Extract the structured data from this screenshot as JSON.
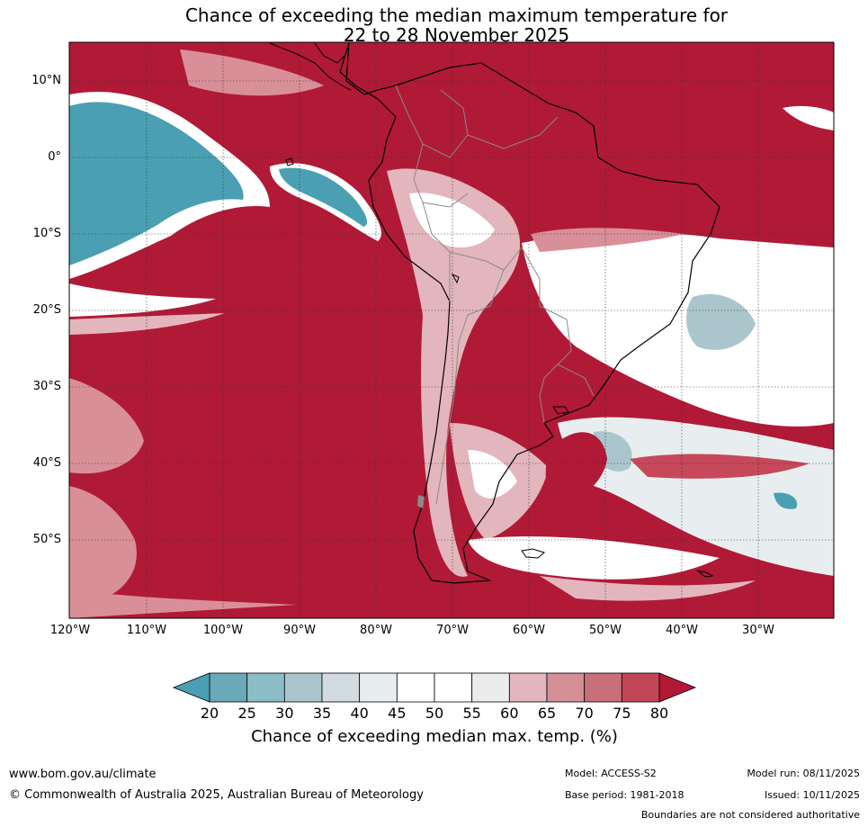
{
  "title": {
    "line1": "Chance of exceeding the median maximum temperature for",
    "line2": "22 to 28 November 2025"
  },
  "map": {
    "latitude_labels": [
      "10°N",
      "0°",
      "10°S",
      "20°S",
      "30°S",
      "40°S",
      "50°S"
    ],
    "longitude_labels": [
      "120°W",
      "110°W",
      "100°W",
      "90°W",
      "80°W",
      "70°W",
      "60°W",
      "50°W",
      "40°W",
      "30°W"
    ],
    "colors": {
      "very_high": "#b01a37",
      "high": "#c7485a",
      "mid_high": "#d98f98",
      "neutral": "#ffffff",
      "mid_low": "#c3d5d8",
      "low": "#4aa0b2",
      "coastline": "#000000",
      "border": "#8a8a8a"
    }
  },
  "colorbar": {
    "ticks": [
      "20",
      "25",
      "30",
      "35",
      "40",
      "45",
      "50",
      "55",
      "60",
      "65",
      "70",
      "75",
      "80"
    ],
    "colors": [
      "#4aa0b2",
      "#6aaab7",
      "#8bbcc7",
      "#aac6cc",
      "#d2dbdd",
      "#e8eef0",
      "#ffffff",
      "#ffffff",
      "#ececed",
      "#e2b6bc",
      "#d68e97",
      "#c96f7a",
      "#c24657",
      "#b01a37"
    ],
    "label": "Chance of exceeding median max. temp. (%)"
  },
  "footer": {
    "site": "www.bom.gov.au/climate",
    "copyright": "© Commonwealth of Australia 2025, Australian Bureau of Meteorology",
    "model": "Model: ACCESS-S2",
    "base_period": "Base period: 1981-2018",
    "model_run": "Model run: 08/11/2025",
    "issued": "Issued: 10/11/2025",
    "disclaimer": "Boundaries are not considered authoritative"
  }
}
